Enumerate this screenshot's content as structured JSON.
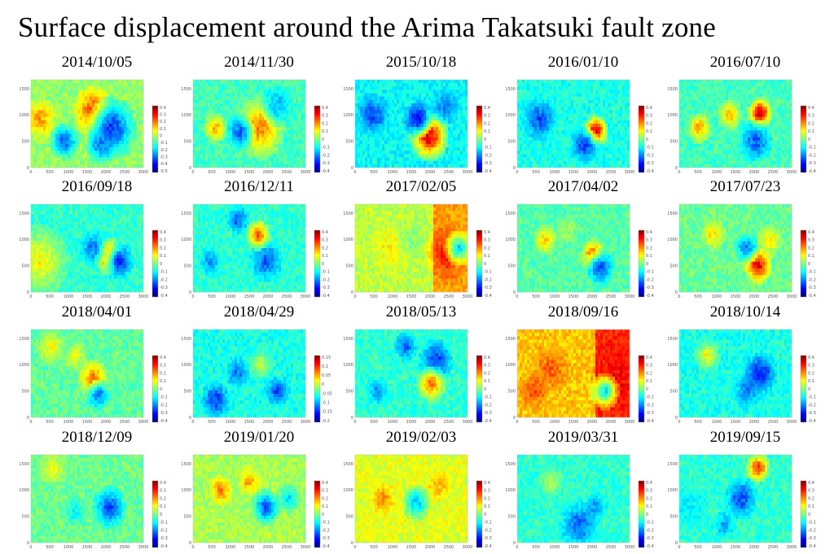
{
  "title": "Surface displacement around the Arima Takatsuki fault zone",
  "colormap": [
    "#00007f",
    "#0000ff",
    "#007fff",
    "#00ffff",
    "#7fff7f",
    "#ffff00",
    "#ff7f00",
    "#ff0000",
    "#7f0000"
  ],
  "chart_data": [
    {
      "type": "heatmap",
      "title": "2014/10/05",
      "x_ticks": [
        "0",
        "500",
        "1000",
        "1500",
        "2000",
        "2500",
        "3000"
      ],
      "y_ticks": [
        "0",
        "500",
        "1000",
        "1500"
      ],
      "colorbar_ticks": [
        "0.4",
        "0.3",
        "0.2",
        "0.1",
        "0",
        "-0.1",
        "-0.2",
        "-0.3",
        "-0.4",
        "-0.5"
      ]
    },
    {
      "type": "heatmap",
      "title": "2014/11/30",
      "x_ticks": [
        "0",
        "500",
        "1000",
        "1500",
        "2000",
        "2500",
        "3000"
      ],
      "y_ticks": [
        "0",
        "500",
        "1000",
        "1500"
      ],
      "colorbar_ticks": [
        "0.4",
        "0.3",
        "0.2",
        "0.1",
        "0",
        "-0.1",
        "-0.2",
        "-0.3",
        "-0.4"
      ]
    },
    {
      "type": "heatmap",
      "title": "2015/10/18",
      "x_ticks": [
        "0",
        "500",
        "1000",
        "1500",
        "2000",
        "2500",
        "3000"
      ],
      "y_ticks": [
        "0",
        "500",
        "1000",
        "1500"
      ],
      "colorbar_ticks": [
        "0.4",
        "0.3",
        "0.2",
        "0.1",
        "0",
        "-0.1",
        "-0.2",
        "-0.3",
        "-0.4"
      ]
    },
    {
      "type": "heatmap",
      "title": "2016/01/10",
      "x_ticks": [
        "0",
        "500",
        "1000",
        "1500",
        "2000",
        "2500",
        "3000"
      ],
      "y_ticks": [
        "0",
        "500",
        "1000",
        "1500"
      ],
      "colorbar_ticks": [
        "0.4",
        "0.3",
        "0.2",
        "0.1",
        "0",
        "-0.1",
        "-0.2",
        "-0.3",
        "-0.4"
      ]
    },
    {
      "type": "heatmap",
      "title": "2016/07/10",
      "x_ticks": [
        "0",
        "500",
        "1000",
        "1500",
        "2000",
        "2500",
        "3000"
      ],
      "y_ticks": [
        "0",
        "500",
        "1000",
        "1500"
      ],
      "colorbar_ticks": [
        "0.4",
        "0.3",
        "0.2",
        "0.1",
        "0",
        "-0.1",
        "-0.2",
        "-0.3",
        "-0.4"
      ]
    },
    {
      "type": "heatmap",
      "title": "2016/09/18",
      "x_ticks": [
        "0",
        "500",
        "1000",
        "1500",
        "2000",
        "2500",
        "3000"
      ],
      "y_ticks": [
        "0",
        "500",
        "1000",
        "1500"
      ],
      "colorbar_ticks": [
        "0.4",
        "0.3",
        "0.2",
        "0.1",
        "0",
        "-0.1",
        "-0.2",
        "-0.3",
        "-0.4"
      ]
    },
    {
      "type": "heatmap",
      "title": "2016/12/11",
      "x_ticks": [
        "0",
        "500",
        "1000",
        "1500",
        "2000",
        "2500",
        "3000"
      ],
      "y_ticks": [
        "0",
        "500",
        "1000",
        "1500"
      ],
      "colorbar_ticks": [
        "0.4",
        "0.3",
        "0.2",
        "0.1",
        "0",
        "-0.1",
        "-0.2",
        "-0.3",
        "-0.4"
      ]
    },
    {
      "type": "heatmap",
      "title": "2017/02/05",
      "x_ticks": [
        "0",
        "500",
        "1000",
        "1500",
        "2000",
        "2500",
        "3000"
      ],
      "y_ticks": [
        "0",
        "500",
        "1000",
        "1500"
      ],
      "colorbar_ticks": [
        "0.4",
        "0.3",
        "0.2",
        "0.1",
        "0",
        "-0.1",
        "-0.2",
        "-0.3",
        "-0.4"
      ]
    },
    {
      "type": "heatmap",
      "title": "2017/04/02",
      "x_ticks": [
        "0",
        "500",
        "1000",
        "1500",
        "2000",
        "2500",
        "3000"
      ],
      "y_ticks": [
        "0",
        "500",
        "1000",
        "1500"
      ],
      "colorbar_ticks": [
        "0.4",
        "0.3",
        "0.2",
        "0.1",
        "0",
        "-0.1",
        "-0.2",
        "-0.3",
        "-0.4"
      ]
    },
    {
      "type": "heatmap",
      "title": "2017/07/23",
      "x_ticks": [
        "0",
        "500",
        "1000",
        "1500",
        "2000",
        "2500",
        "3000"
      ],
      "y_ticks": [
        "0",
        "500",
        "1000",
        "1500"
      ],
      "colorbar_ticks": [
        "0.4",
        "0.3",
        "0.2",
        "0.1",
        "0",
        "-0.1",
        "-0.2",
        "-0.3",
        "-0.4"
      ]
    },
    {
      "type": "heatmap",
      "title": "2018/04/01",
      "x_ticks": [
        "0",
        "500",
        "1000",
        "1500",
        "2000",
        "2500",
        "3000"
      ],
      "y_ticks": [
        "0",
        "500",
        "1000",
        "1500"
      ],
      "colorbar_ticks": [
        "0.4",
        "0.3",
        "0.2",
        "0.1",
        "0",
        "-0.1",
        "-0.2",
        "-0.3",
        "-0.4"
      ]
    },
    {
      "type": "heatmap",
      "title": "2018/04/29",
      "x_ticks": [
        "0",
        "500",
        "1000",
        "1500",
        "2000",
        "2500",
        "3000"
      ],
      "y_ticks": [
        "0",
        "500",
        "1000",
        "1500"
      ],
      "colorbar_ticks": [
        "0.15",
        "0.1",
        "0.05",
        "0",
        "-0.05",
        "-0.1",
        "-0.15",
        "-0.2"
      ]
    },
    {
      "type": "heatmap",
      "title": "2018/05/13",
      "x_ticks": [
        "0",
        "500",
        "1000",
        "1500",
        "2000",
        "2500",
        "3000"
      ],
      "y_ticks": [
        "0",
        "500",
        "1000",
        "1500"
      ],
      "colorbar_ticks": [
        "0.4",
        "0.3",
        "0.2",
        "0.1",
        "0",
        "-0.1",
        "-0.2",
        "-0.3",
        "-0.4"
      ]
    },
    {
      "type": "heatmap",
      "title": "2018/09/16",
      "x_ticks": [
        "0",
        "500",
        "1000",
        "1500",
        "2000",
        "2500",
        "3000"
      ],
      "y_ticks": [
        "0",
        "500",
        "1000",
        "1500"
      ],
      "colorbar_ticks": [
        "0.4",
        "0.3",
        "0.2",
        "0.1",
        "0",
        "-0.1",
        "-0.2",
        "-0.3",
        "-0.4"
      ]
    },
    {
      "type": "heatmap",
      "title": "2018/10/14",
      "x_ticks": [
        "0",
        "500",
        "1000",
        "1500",
        "2000",
        "2500",
        "3000"
      ],
      "y_ticks": [
        "0",
        "500",
        "1000",
        "1500"
      ],
      "colorbar_ticks": [
        "0.4",
        "0.3",
        "0.2",
        "0.1",
        "0",
        "-0.1",
        "-0.2",
        "-0.3",
        "-0.4"
      ]
    },
    {
      "type": "heatmap",
      "title": "2018/12/09",
      "x_ticks": [
        "0",
        "500",
        "1000",
        "1500",
        "2000",
        "2500",
        "3000"
      ],
      "y_ticks": [
        "0",
        "500",
        "1000",
        "1500"
      ],
      "colorbar_ticks": [
        "0.4",
        "0.3",
        "0.2",
        "0.1",
        "0",
        "-0.1",
        "-0.2",
        "-0.3",
        "-0.4"
      ]
    },
    {
      "type": "heatmap",
      "title": "2019/01/20",
      "x_ticks": [
        "0",
        "500",
        "1000",
        "1500",
        "2000",
        "2500",
        "3000"
      ],
      "y_ticks": [
        "0",
        "500",
        "1000",
        "1500"
      ],
      "colorbar_ticks": [
        "0.4",
        "0.3",
        "0.2",
        "0.1",
        "0",
        "-0.1",
        "-0.2",
        "-0.3",
        "-0.4"
      ]
    },
    {
      "type": "heatmap",
      "title": "2019/02/03",
      "x_ticks": [
        "0",
        "500",
        "1000",
        "1500",
        "2000",
        "2500",
        "3000"
      ],
      "y_ticks": [
        "0",
        "500",
        "1000",
        "1500"
      ],
      "colorbar_ticks": [
        "0.4",
        "0.3",
        "0.2",
        "0.1",
        "0",
        "-0.1",
        "-0.2",
        "-0.3",
        "-0.4"
      ]
    },
    {
      "type": "heatmap",
      "title": "2019/03/31",
      "x_ticks": [
        "0",
        "500",
        "1000",
        "1500",
        "2000",
        "2500",
        "3000"
      ],
      "y_ticks": [
        "0",
        "500",
        "1000",
        "1500"
      ],
      "colorbar_ticks": [
        "0.4",
        "0.3",
        "0.2",
        "0.1",
        "0",
        "-0.1",
        "-0.2",
        "-0.3",
        "-0.4"
      ]
    },
    {
      "type": "heatmap",
      "title": "2019/09/15",
      "x_ticks": [
        "0",
        "500",
        "1000",
        "1500",
        "2000",
        "2500",
        "3000"
      ],
      "y_ticks": [
        "0",
        "500",
        "1000",
        "1500"
      ],
      "colorbar_ticks": [
        "0.4",
        "0.3",
        "0.2",
        "0.1",
        "0",
        "-0.1",
        "-0.2",
        "-0.3",
        "-0.4"
      ]
    }
  ]
}
